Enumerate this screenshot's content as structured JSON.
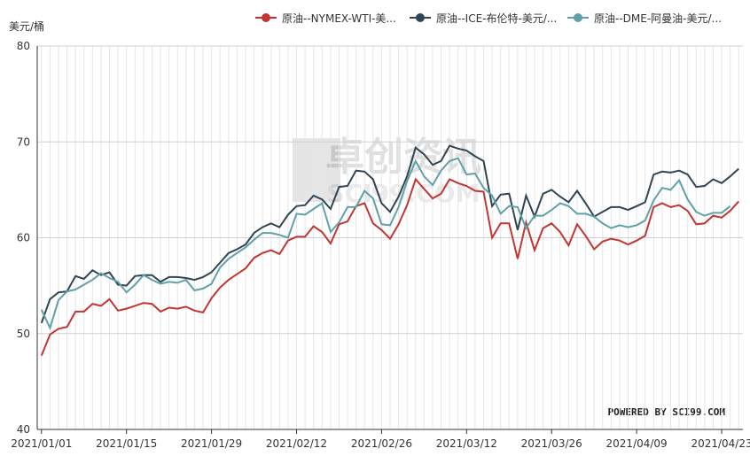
{
  "chart_data": {
    "type": "line",
    "y_label": "美元/桶",
    "watermark": "卓创资讯",
    "watermark_sub": "SCI99.COM",
    "credit": "POWERED BY SCI99.COM",
    "categories": [
      "2021/01/01",
      null,
      null,
      null,
      null,
      null,
      null,
      null,
      null,
      null,
      "2021/01/15",
      null,
      null,
      null,
      null,
      null,
      null,
      null,
      null,
      null,
      "2021/01/29",
      null,
      null,
      null,
      null,
      null,
      null,
      null,
      null,
      null,
      "2021/02/12",
      null,
      null,
      null,
      null,
      null,
      null,
      null,
      null,
      null,
      "2021/02/26",
      null,
      null,
      null,
      null,
      null,
      null,
      null,
      null,
      null,
      "2021/03/12",
      null,
      null,
      null,
      null,
      null,
      null,
      null,
      null,
      null,
      "2021/03/26",
      null,
      null,
      null,
      null,
      null,
      null,
      null,
      null,
      null,
      "2021/04/09",
      null,
      null,
      null,
      null,
      null,
      null,
      null,
      null,
      null,
      "2021/04/23",
      null,
      null
    ],
    "series": [
      {
        "name": "原油--NYMEX-WTI-美...",
        "color": "#c23531",
        "values": [
          47.7,
          49.9,
          50.5,
          50.7,
          52.3,
          52.3,
          53.1,
          52.9,
          53.6,
          52.4,
          52.6,
          52.9,
          53.2,
          53.1,
          52.3,
          52.7,
          52.6,
          52.8,
          52.4,
          52.2,
          53.7,
          54.8,
          55.6,
          56.2,
          56.8,
          57.9,
          58.4,
          58.7,
          58.3,
          59.7,
          60.1,
          60.1,
          61.2,
          60.6,
          59.4,
          61.4,
          61.7,
          63.3,
          63.6,
          61.5,
          60.8,
          59.9,
          61.4,
          63.4,
          66.1,
          65.1,
          64.1,
          64.6,
          66.1,
          65.7,
          65.4,
          64.9,
          64.8,
          60.0,
          61.5,
          61.5,
          57.8,
          61.6,
          58.7,
          61.0,
          61.5,
          60.6,
          59.2,
          61.4,
          60.2,
          58.8,
          59.6,
          59.9,
          59.7,
          59.3,
          59.7,
          60.2,
          63.2,
          63.6,
          63.2,
          63.4,
          62.8,
          61.4,
          61.5,
          62.3,
          62.1,
          62.8,
          63.8
        ]
      },
      {
        "name": "原油--ICE-布伦特-美元/...",
        "color": "#2f4554",
        "values": [
          51.1,
          53.6,
          54.3,
          54.4,
          56.0,
          55.7,
          56.6,
          56.1,
          56.4,
          55.1,
          55.0,
          56.0,
          56.1,
          56.1,
          55.4,
          55.9,
          55.9,
          55.8,
          55.6,
          55.9,
          56.4,
          57.4,
          58.4,
          58.8,
          59.3,
          60.5,
          61.1,
          61.5,
          61.1,
          62.4,
          63.3,
          63.4,
          64.4,
          64.0,
          63.0,
          65.3,
          65.4,
          67.0,
          66.9,
          66.1,
          63.6,
          62.7,
          64.3,
          66.4,
          69.4,
          68.7,
          67.6,
          68.0,
          69.6,
          69.3,
          69.1,
          68.5,
          68.0,
          63.3,
          64.5,
          64.6,
          60.8,
          64.4,
          62.2,
          64.6,
          65.0,
          64.3,
          63.7,
          64.9,
          63.6,
          62.2,
          62.7,
          63.2,
          63.2,
          62.9,
          63.3,
          63.7,
          66.6,
          66.9,
          66.8,
          67.0,
          66.6,
          65.3,
          65.4,
          66.1,
          65.7,
          66.4,
          67.2
        ]
      },
      {
        "name": "原油--DME-阿曼油-美元/...",
        "color": "#61a0a8",
        "values": [
          52.5,
          50.6,
          53.5,
          54.4,
          54.6,
          55.1,
          55.6,
          56.3,
          55.8,
          55.4,
          54.3,
          55.1,
          56.1,
          55.6,
          55.2,
          55.4,
          55.3,
          55.6,
          54.5,
          54.7,
          55.2,
          56.9,
          57.8,
          58.4,
          59.0,
          59.8,
          60.5,
          60.5,
          60.3,
          60.0,
          62.5,
          62.4,
          63.0,
          63.6,
          60.6,
          61.6,
          63.2,
          63.2,
          64.9,
          64.1,
          61.4,
          61.3,
          63.2,
          65.9,
          68.0,
          66.4,
          65.5,
          67.0,
          68.0,
          68.3,
          66.6,
          66.7,
          65.2,
          64.4,
          62.5,
          63.3,
          63.2,
          61.0,
          62.3,
          62.3,
          62.9,
          63.6,
          63.3,
          62.5,
          62.5,
          62.2,
          61.5,
          61.0,
          61.3,
          61.1,
          61.3,
          61.8,
          63.9,
          65.2,
          65.0,
          66.0,
          64.0,
          62.7,
          62.3,
          62.6,
          62.6,
          63.3,
          null
        ]
      }
    ],
    "ylim": [
      40,
      80
    ],
    "yticks": [
      40,
      50,
      60,
      70,
      80
    ],
    "grid": true
  }
}
